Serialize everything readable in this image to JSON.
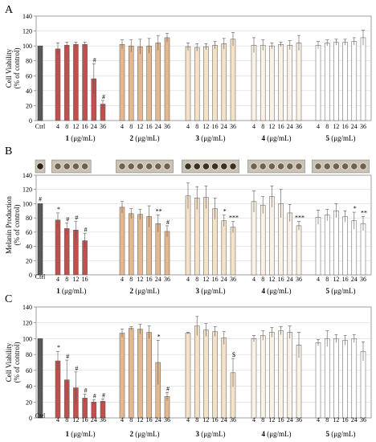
{
  "panels": [
    {
      "letter": "A"
    },
    {
      "letter": "B"
    },
    {
      "letter": "C"
    }
  ],
  "chart_data": [
    {
      "type": "bar",
      "panel": "A",
      "ylabel_lines": [
        "Cell Viability",
        "(% of control)"
      ],
      "ylim": [
        0,
        140
      ],
      "yticks": [
        0,
        20,
        40,
        60,
        80,
        100,
        120,
        140
      ],
      "grid": true,
      "control": {
        "label": "Ctrl",
        "value": 100,
        "color": "#595959"
      },
      "groups": [
        {
          "compound": "1",
          "unit": "(μg/mL)",
          "color": "#c0504d",
          "concentrations": [
            "4",
            "8",
            "12",
            "16",
            "24",
            "36"
          ],
          "values": [
            96,
            101,
            102,
            102,
            56,
            22
          ],
          "errors": [
            8,
            4,
            3,
            3,
            20,
            5
          ],
          "marks": [
            "",
            "",
            "",
            "",
            "#",
            "#"
          ]
        },
        {
          "compound": "2",
          "unit": "(μg/mL)",
          "color": "#e3b88f",
          "concentrations": [
            "4",
            "8",
            "12",
            "16",
            "24",
            "36"
          ],
          "values": [
            102,
            100,
            99,
            100,
            104,
            111
          ],
          "errors": [
            6,
            8,
            10,
            10,
            10,
            6
          ],
          "marks": [
            "",
            "",
            "",
            "",
            "",
            ""
          ]
        },
        {
          "compound": "3",
          "unit": "(μg/mL)",
          "color": "#f3e1c8",
          "concentrations": [
            "4",
            "8",
            "12",
            "16",
            "24",
            "36"
          ],
          "values": [
            99,
            98,
            99,
            101,
            103,
            109
          ],
          "errors": [
            5,
            5,
            4,
            5,
            7,
            9
          ],
          "marks": [
            "",
            "",
            "",
            "",
            "",
            ""
          ]
        },
        {
          "compound": "4",
          "unit": "(μg/mL)",
          "color": "#faf2e6",
          "concentrations": [
            "4",
            "8",
            "12",
            "16",
            "24",
            "36"
          ],
          "values": [
            101,
            101,
            100,
            102,
            101,
            104
          ],
          "errors": [
            10,
            7,
            4,
            3,
            6,
            10
          ],
          "marks": [
            "",
            "",
            "",
            "",
            "",
            ""
          ]
        },
        {
          "compound": "5",
          "unit": "(μg/mL)",
          "color": "#ffffff",
          "concentrations": [
            "4",
            "8",
            "12",
            "16",
            "24",
            "36"
          ],
          "values": [
            101,
            104,
            105,
            105,
            106,
            111
          ],
          "errors": [
            5,
            4,
            4,
            4,
            5,
            10
          ],
          "marks": [
            "",
            "",
            "",
            "",
            "",
            ""
          ]
        }
      ]
    },
    {
      "type": "bar",
      "panel": "B",
      "ylabel_lines": [
        "Melanin Production",
        "(% of control)"
      ],
      "ylim": [
        0,
        140
      ],
      "yticks": [
        0,
        20,
        40,
        60,
        80,
        100,
        120,
        140
      ],
      "grid": true,
      "control": {
        "label": "Ctrl",
        "value": 100,
        "color": "#595959",
        "mark": "#"
      },
      "groups": [
        {
          "compound": "1",
          "unit": "(μg/mL)",
          "color": "#c0504d",
          "concentrations": [
            "4",
            "8",
            "12",
            "16"
          ],
          "values": [
            77,
            65,
            63,
            48
          ],
          "errors": [
            10,
            8,
            12,
            10
          ],
          "marks": [
            "*",
            "#",
            "#",
            "#"
          ]
        },
        {
          "compound": "2",
          "unit": "(μg/mL)",
          "color": "#e3b88f",
          "concentrations": [
            "4",
            "8",
            "12",
            "16",
            "24",
            "36"
          ],
          "values": [
            95,
            86,
            85,
            82,
            72,
            61
          ],
          "errors": [
            8,
            7,
            7,
            15,
            12,
            8
          ],
          "marks": [
            "",
            "",
            "",
            "",
            "**",
            "#"
          ]
        },
        {
          "compound": "3",
          "unit": "(μg/mL)",
          "color": "#f3e1c8",
          "concentrations": [
            "4",
            "8",
            "12",
            "16",
            "24",
            "36"
          ],
          "values": [
            111,
            108,
            109,
            93,
            76,
            67
          ],
          "errors": [
            18,
            16,
            16,
            15,
            8,
            8
          ],
          "marks": [
            "",
            "",
            "",
            "",
            "*",
            "***"
          ]
        },
        {
          "compound": "4",
          "unit": "(μg/mL)",
          "color": "#faf2e6",
          "concentrations": [
            "4",
            "8",
            "12",
            "16",
            "24",
            "36"
          ],
          "values": [
            103,
            98,
            110,
            100,
            87,
            69
          ],
          "errors": [
            15,
            12,
            15,
            20,
            12,
            6
          ],
          "marks": [
            "",
            "",
            "",
            "",
            "",
            "***"
          ]
        },
        {
          "compound": "5",
          "unit": "(μg/mL)",
          "color": "#ffffff",
          "concentrations": [
            "4",
            "8",
            "12",
            "16",
            "24",
            "36"
          ],
          "values": [
            81,
            84,
            90,
            82,
            76,
            72
          ],
          "errors": [
            10,
            8,
            10,
            8,
            12,
            10
          ],
          "marks": [
            "",
            "",
            "",
            "",
            "*",
            "**"
          ]
        }
      ]
    },
    {
      "type": "bar",
      "panel": "C",
      "ylabel_lines": [
        "Cell Viability",
        "(% of control)"
      ],
      "ylim": [
        0,
        140
      ],
      "yticks": [
        0,
        20,
        40,
        60,
        80,
        100,
        120,
        140
      ],
      "grid": true,
      "control": {
        "label": "Ctrl",
        "value": 100,
        "color": "#595959"
      },
      "groups": [
        {
          "compound": "1",
          "unit": "(μg/mL)",
          "color": "#c0504d",
          "concentrations": [
            "4",
            "8",
            "12",
            "16",
            "24",
            "36"
          ],
          "values": [
            72,
            48,
            38,
            25,
            20,
            21
          ],
          "errors": [
            12,
            25,
            20,
            5,
            3,
            3
          ],
          "marks": [
            "*",
            "#",
            "#",
            "#",
            "#",
            "#"
          ]
        },
        {
          "compound": "2",
          "unit": "(μg/mL)",
          "color": "#e3b88f",
          "concentrations": [
            "4",
            "8",
            "12",
            "16",
            "24",
            "36"
          ],
          "values": [
            107,
            113,
            112,
            108,
            70,
            27
          ],
          "errors": [
            5,
            2,
            6,
            8,
            28,
            5
          ],
          "marks": [
            "",
            "",
            "",
            "",
            "*",
            "#"
          ]
        },
        {
          "compound": "3",
          "unit": "(μg/mL)",
          "color": "#f3e1c8",
          "concentrations": [
            "4",
            "8",
            "12",
            "16",
            "24",
            "36"
          ],
          "values": [
            107,
            116,
            111,
            109,
            101,
            57
          ],
          "errors": [
            1,
            12,
            8,
            6,
            8,
            18
          ],
          "marks": [
            "",
            "",
            "",
            "",
            "",
            "$"
          ]
        },
        {
          "compound": "4",
          "unit": "(μg/mL)",
          "color": "#faf2e6",
          "concentrations": [
            "4",
            "8",
            "12",
            "16",
            "24",
            "36"
          ],
          "values": [
            100,
            104,
            108,
            110,
            108,
            92
          ],
          "errors": [
            4,
            6,
            6,
            5,
            8,
            16
          ],
          "marks": [
            "",
            "",
            "",
            "",
            "",
            ""
          ]
        },
        {
          "compound": "5",
          "unit": "(μg/mL)",
          "color": "#ffffff",
          "concentrations": [
            "4",
            "8",
            "12",
            "16",
            "24",
            "36"
          ],
          "values": [
            95,
            100,
            100,
            98,
            100,
            84
          ],
          "errors": [
            4,
            10,
            5,
            6,
            5,
            12
          ],
          "marks": [
            "",
            "",
            "",
            "",
            "",
            ""
          ]
        }
      ]
    }
  ]
}
